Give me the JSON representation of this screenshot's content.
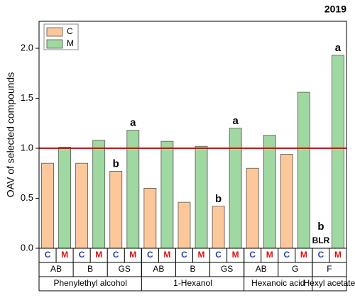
{
  "chart_data": {
    "type": "bar",
    "title": "2019",
    "y_label": "OAV of selected compounds",
    "ylim": [
      0,
      2.27
    ],
    "yticks": [
      {
        "value": 0,
        "label": "0.0"
      },
      {
        "value": 0.5,
        "label": "0.5"
      },
      {
        "value": 1,
        "label": "1.0"
      },
      {
        "value": 1.5,
        "label": "1.5"
      },
      {
        "value": 2,
        "label": "2.0"
      }
    ],
    "category_groups": [
      {
        "name": "Phenylethyl alcohol",
        "categories": [
          "AB",
          "B",
          "GS"
        ]
      },
      {
        "name": "1-Hexanol",
        "categories": [
          "AB",
          "B",
          "GS"
        ]
      },
      {
        "name": "Hexanoic acid",
        "categories": [
          "AB",
          "G"
        ]
      },
      {
        "name": "Hexyl acetate",
        "categories": [
          "F"
        ]
      }
    ],
    "series": [
      {
        "name": "C",
        "color": "#fcc89b",
        "label_color": "#1f3fbf",
        "values": [
          0.85,
          0.85,
          0.77,
          0.6,
          0.46,
          0.42,
          0.8,
          0.94,
          null
        ],
        "letters": [
          null,
          null,
          "b",
          null,
          null,
          "b",
          null,
          null,
          "b"
        ],
        "notes": [
          null,
          null,
          null,
          null,
          null,
          null,
          null,
          null,
          "BLR"
        ]
      },
      {
        "name": "M",
        "color": "#9fd8a0",
        "label_color": "#e01010",
        "values": [
          1.01,
          1.08,
          1.18,
          1.07,
          1.02,
          1.2,
          1.13,
          1.56,
          1.93
        ],
        "letters": [
          null,
          null,
          "a",
          null,
          null,
          "a",
          null,
          null,
          "a"
        ]
      }
    ],
    "reference_line": {
      "value": 1,
      "color": "#e00000"
    },
    "legend": "top-left"
  }
}
